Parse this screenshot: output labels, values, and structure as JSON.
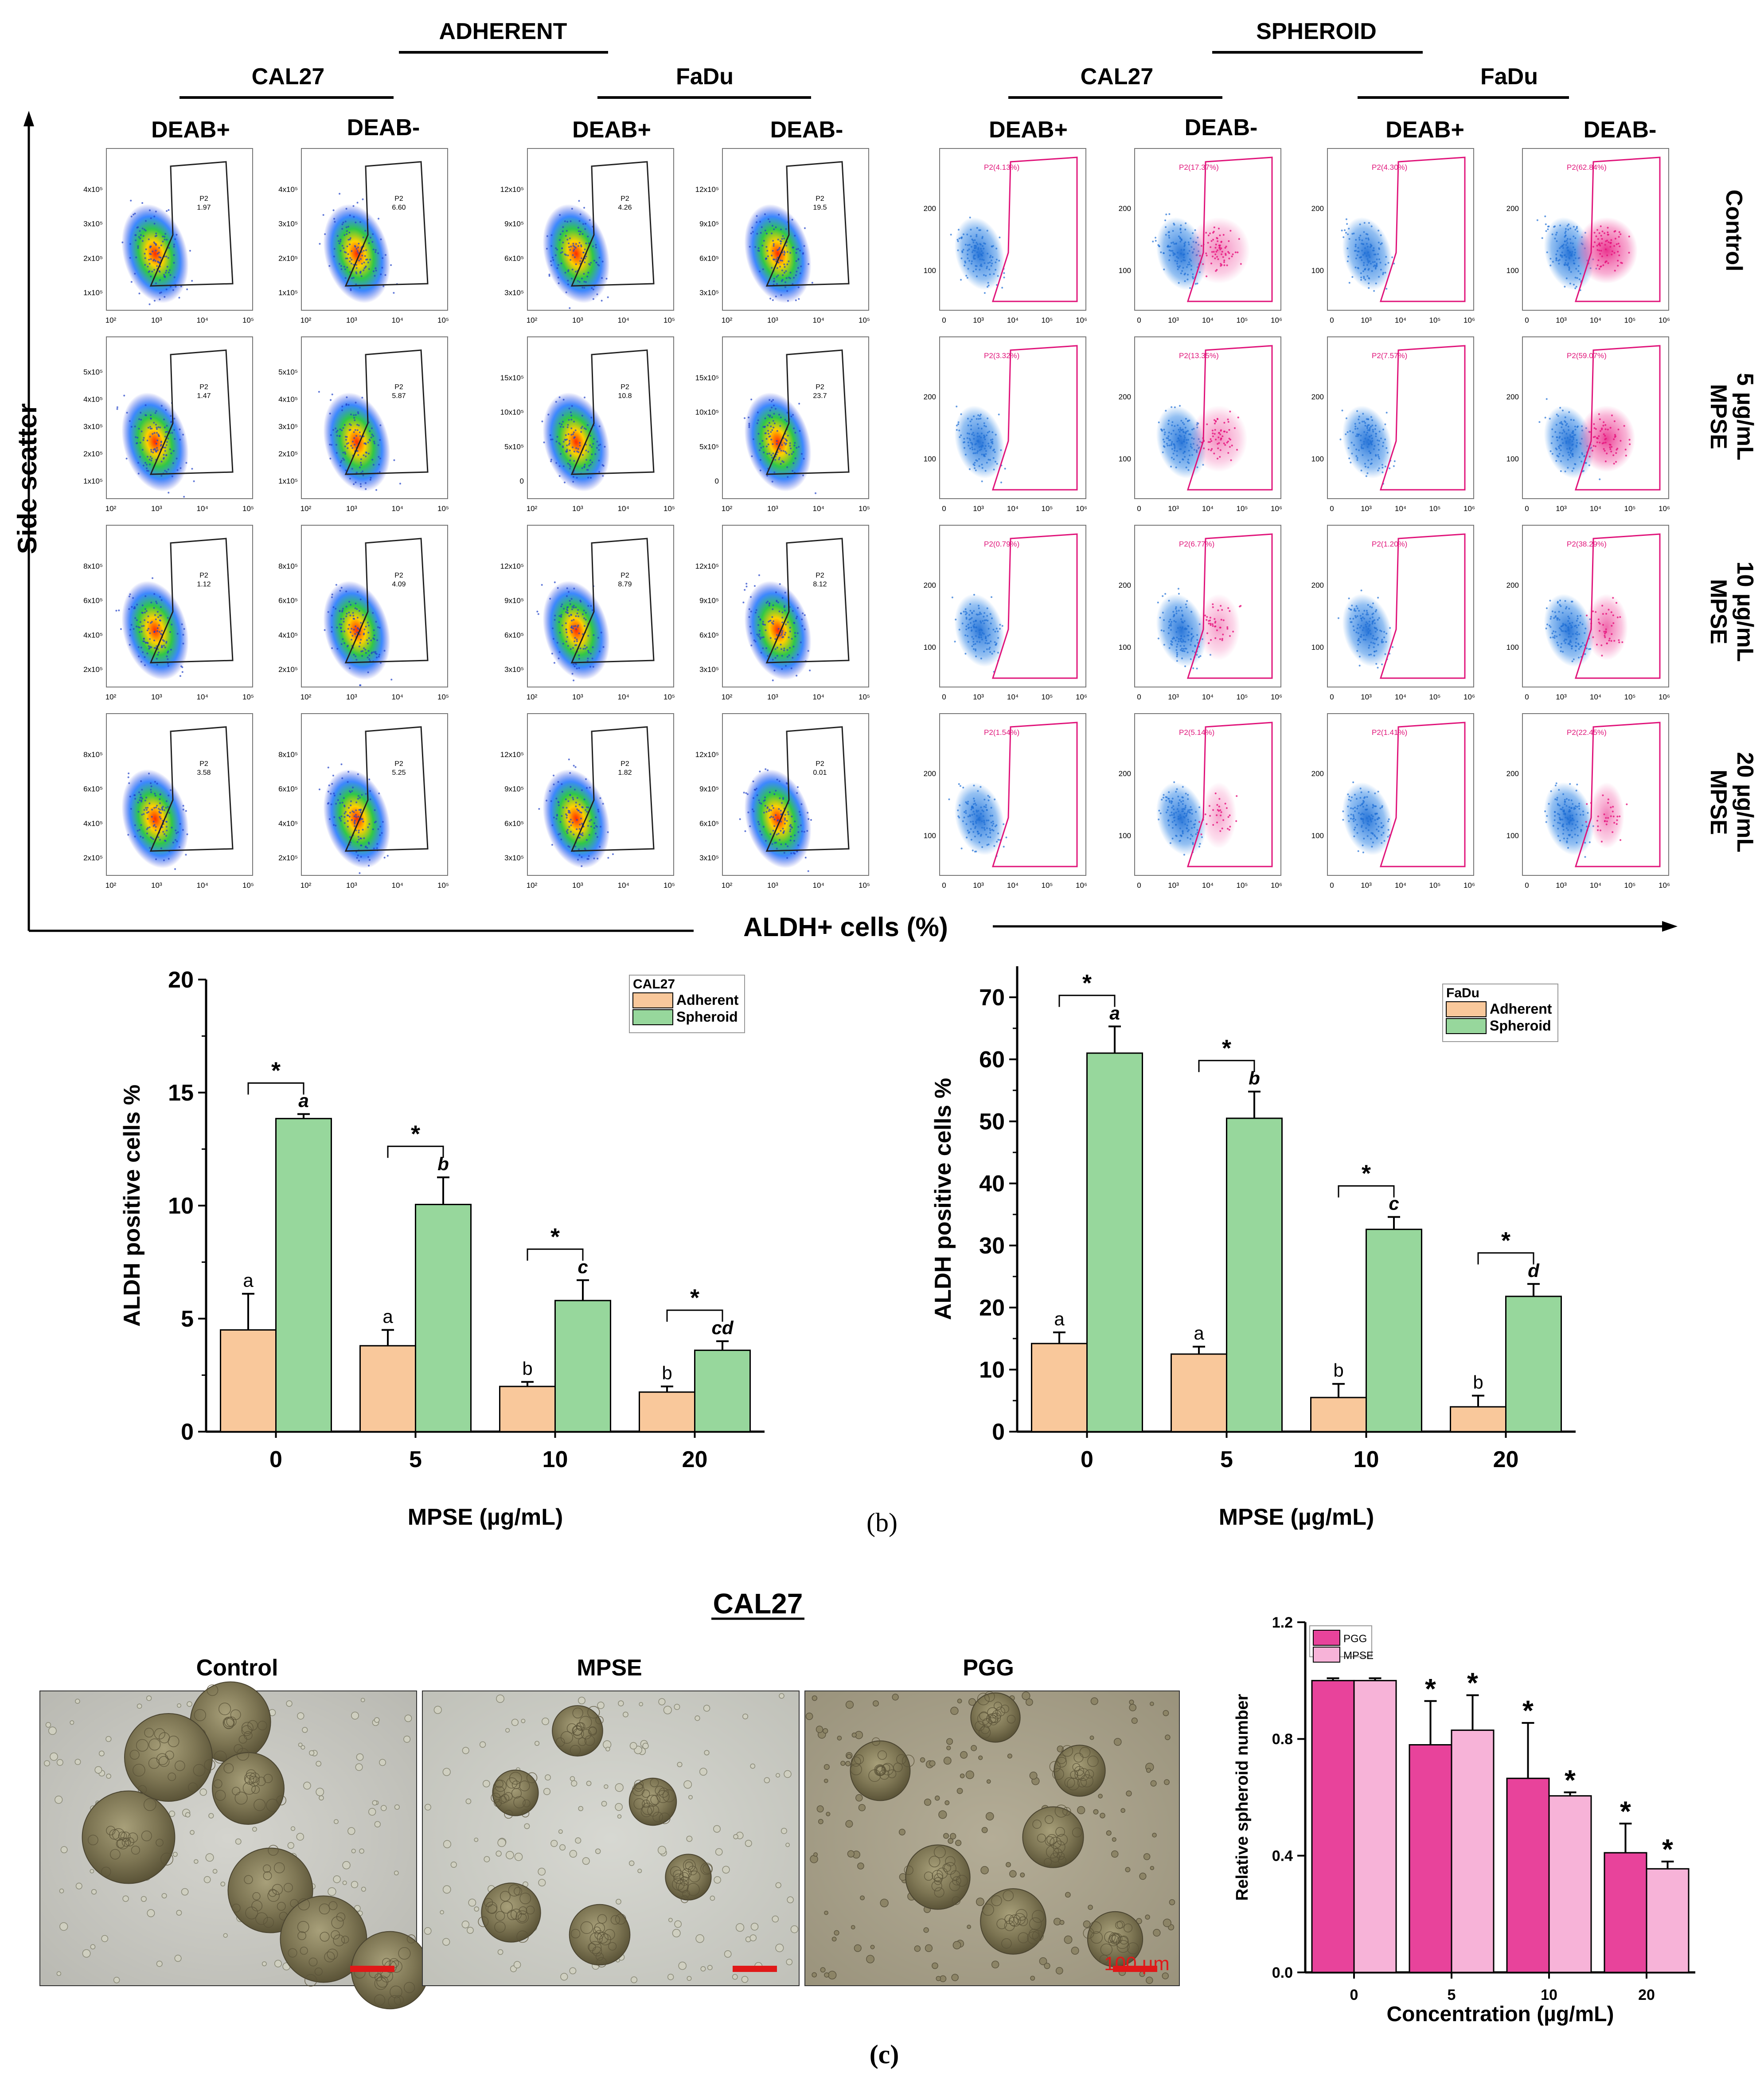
{
  "colors": {
    "adherent": "#f9c89b",
    "spheroid": "#97d79c",
    "pgg": "#e8439b",
    "mpse": "#f7b3d8",
    "gate_black": "#222222",
    "gate_magenta": "#e0147a",
    "scalebar": "#e01818",
    "dot_blue": "#1f6fd6",
    "dot_magenta": "#e6127c"
  },
  "panel_a": {
    "adherent_label": "ADHERENT",
    "spheroid_label": "SPHEROID",
    "cell_lines": [
      "CAL27",
      "FaDu",
      "CAL27",
      "FaDu"
    ],
    "columns": [
      "DEAB+",
      "DEAB-",
      "DEAB+",
      "DEAB-",
      "DEAB+",
      "DEAB-",
      "DEAB+",
      "DEAB-"
    ],
    "rows": [
      "Control",
      "MPSE\n5 µg/mL",
      "MPSE\n10 µg/mL",
      "MPSE\n20 µg/mL"
    ],
    "y_axis_title": "Side scatter",
    "x_axis_title": "ALDH+ cells (%)",
    "gate_name": "P2",
    "gate_values": [
      [
        "1.97",
        "6.60",
        "4.26",
        "19.5",
        "P2(4.13%)",
        "P2(17.37%)",
        "P2(4.30%)",
        "P2(62.84%)"
      ],
      [
        "1.47",
        "5.87",
        "10.8",
        "23.7",
        "P2(3.32%)",
        "P2(13.35%)",
        "P2(7.57%)",
        "P2(59.07%)"
      ],
      [
        "1.12",
        "4.09",
        "8.79",
        "8.12",
        "P2(0.79%)",
        "P2(6.77%)",
        "P2(1.20%)",
        "P2(38.29%)"
      ],
      [
        "3.58",
        "5.25",
        "1.82",
        "0.01",
        "P2(1.54%)",
        "P2(5.14%)",
        "P2(1.41%)",
        "P2(22.45%)"
      ]
    ],
    "yticks": {
      "cal27_adh": [
        [
          "1x10⁵",
          "2x10⁵",
          "3x10⁵",
          "4x10⁵"
        ],
        [
          "1x10⁵",
          "2x10⁵",
          "3x10⁵",
          "4x10⁵",
          "5x10⁵"
        ],
        [
          "2x10⁵",
          "4x10⁵",
          "6x10⁵",
          "8x10⁵"
        ],
        [
          "2x10⁵",
          "4x10⁵",
          "6x10⁵",
          "8x10⁵"
        ]
      ],
      "fadu_adh": [
        [
          "3x10⁵",
          "6x10⁵",
          "9x10⁵",
          "12x10⁵"
        ],
        [
          "0",
          "5x10⁵",
          "10x10⁵",
          "15x10⁵"
        ],
        [
          "3x10⁵",
          "6x10⁵",
          "9x10⁵",
          "12x10⁵"
        ],
        [
          "3x10⁵",
          "6x10⁵",
          "9x10⁵",
          "12x10⁵"
        ]
      ],
      "spheroid": [
        "100",
        "200"
      ]
    },
    "xticks_adh": [
      "10²",
      "10³",
      "10⁴",
      "10⁵"
    ],
    "xticks_sph": [
      "0",
      "10³",
      "10⁴",
      "10⁵",
      "10⁶"
    ]
  },
  "chart_data": [
    {
      "type": "bar",
      "legend_title": "CAL27",
      "categories": [
        "0",
        "5",
        "10",
        "20"
      ],
      "series": [
        {
          "name": "Adherent",
          "values": [
            4.5,
            3.8,
            2.0,
            1.75
          ],
          "errors": [
            1.6,
            0.7,
            0.2,
            0.25
          ],
          "letters": [
            "a",
            "a",
            "b",
            "b"
          ]
        },
        {
          "name": "Spheroid",
          "values": [
            13.85,
            10.05,
            5.8,
            3.6
          ],
          "errors": [
            0.2,
            1.2,
            0.9,
            0.4
          ],
          "letters": [
            "a",
            "b",
            "c",
            "cd"
          ]
        }
      ],
      "significance": [
        "*",
        "*",
        "*",
        "*"
      ],
      "xlabel": "MPSE (µg/mL)",
      "ylabel": "ALDH positive cells %",
      "ylim": [
        0,
        20
      ],
      "yticks": [
        0,
        5,
        10,
        15,
        20
      ],
      "legend_position": "top-right"
    },
    {
      "type": "bar",
      "legend_title": "FaDu",
      "categories": [
        "0",
        "5",
        "10",
        "20"
      ],
      "series": [
        {
          "name": "Adherent",
          "values": [
            14.2,
            12.5,
            5.5,
            4.0
          ],
          "errors": [
            1.8,
            1.2,
            2.2,
            1.8
          ],
          "letters": [
            "a",
            "a",
            "b",
            "b"
          ]
        },
        {
          "name": "Spheroid",
          "values": [
            61.0,
            50.5,
            32.6,
            21.8
          ],
          "errors": [
            4.3,
            4.3,
            2.0,
            2.0
          ],
          "letters": [
            "a",
            "b",
            "c",
            "d"
          ]
        }
      ],
      "significance": [
        "*",
        "*",
        "*",
        "*"
      ],
      "xlabel": "MPSE (µg/mL)",
      "ylabel": "ALDH positive cells %",
      "ylim": [
        0,
        75
      ],
      "yticks": [
        0,
        10,
        20,
        30,
        40,
        50,
        60,
        70
      ],
      "legend_position": "top-right"
    },
    {
      "type": "bar",
      "categories": [
        "0",
        "5",
        "10",
        "20"
      ],
      "series": [
        {
          "name": "PGG",
          "values": [
            1.0,
            0.78,
            0.665,
            0.41
          ],
          "errors": [
            0.008,
            0.15,
            0.19,
            0.1
          ],
          "stars": [
            "",
            "*",
            "*",
            "*"
          ]
        },
        {
          "name": "MPSE",
          "values": [
            1.0,
            0.83,
            0.605,
            0.355
          ],
          "errors": [
            0.008,
            0.12,
            0.012,
            0.025
          ],
          "stars": [
            "",
            "*",
            "*",
            "*"
          ]
        }
      ],
      "xlabel": "Concentration (µg/mL)",
      "ylabel": "Relative spheroid number",
      "ylim": [
        0,
        1.2
      ],
      "yticks": [
        "0.0",
        "0.4",
        "0.8",
        "1.2"
      ],
      "legend_position": "top-left"
    }
  ],
  "panel_b": {
    "caption": "(b)"
  },
  "panel_c": {
    "title": "CAL27",
    "photos": [
      "Control",
      "MPSE",
      "PGG"
    ],
    "scalebar_label": "100 µm",
    "caption": "(c)"
  }
}
